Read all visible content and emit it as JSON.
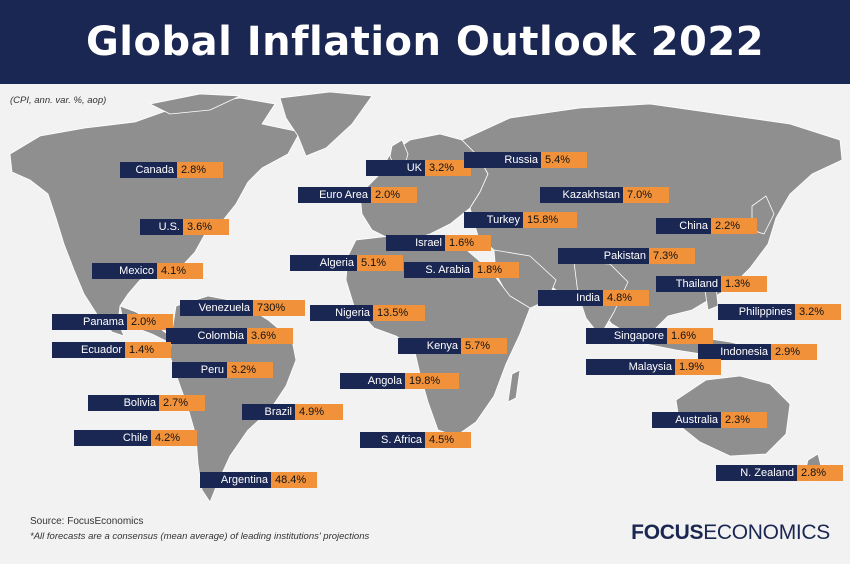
{
  "title": "Global Inflation Outlook 2022",
  "subtitle": "(CPI, ann. var. %, aop)",
  "source": "Source: FocusEconomics",
  "note": "*All forecasts are a consensus (mean average) of leading institutions' projections",
  "logo": {
    "bold": "FOCUS",
    "light": "ECONOMICS"
  },
  "colors": {
    "header": "#1b2753",
    "label_name_bg": "#1b2753",
    "label_value_bg": "#f1923b",
    "land": "#8f8f8f",
    "ocean": "#f2f2f2"
  },
  "countries": [
    {
      "name": "Canada",
      "value": "2.8%"
    },
    {
      "name": "U.S.",
      "value": "3.6%"
    },
    {
      "name": "Mexico",
      "value": "4.1%"
    },
    {
      "name": "Venezuela",
      "value": "730%"
    },
    {
      "name": "Panama",
      "value": "2.0%"
    },
    {
      "name": "Colombia",
      "value": "3.6%"
    },
    {
      "name": "Ecuador",
      "value": "1.4%"
    },
    {
      "name": "Peru",
      "value": "3.2%"
    },
    {
      "name": "Bolivia",
      "value": "2.7%"
    },
    {
      "name": "Brazil",
      "value": "4.9%"
    },
    {
      "name": "Chile",
      "value": "4.2%"
    },
    {
      "name": "Argentina",
      "value": "48.4%"
    },
    {
      "name": "UK",
      "value": "3.2%"
    },
    {
      "name": "Euro Area",
      "value": "2.0%"
    },
    {
      "name": "Russia",
      "value": "5.4%"
    },
    {
      "name": "Kazakhstan",
      "value": "7.0%"
    },
    {
      "name": "Turkey",
      "value": "15.8%"
    },
    {
      "name": "China",
      "value": "2.2%"
    },
    {
      "name": "Israel",
      "value": "1.6%"
    },
    {
      "name": "Algeria",
      "value": "5.1%"
    },
    {
      "name": "S. Arabia",
      "value": "1.8%"
    },
    {
      "name": "Pakistan",
      "value": "7.3%"
    },
    {
      "name": "Thailand",
      "value": "1.3%"
    },
    {
      "name": "India",
      "value": "4.8%"
    },
    {
      "name": "Philippines",
      "value": "3.2%"
    },
    {
      "name": "Nigeria",
      "value": "13.5%"
    },
    {
      "name": "Singapore",
      "value": "1.6%"
    },
    {
      "name": "Kenya",
      "value": "5.7%"
    },
    {
      "name": "Indonesia",
      "value": "2.9%"
    },
    {
      "name": "Malaysia",
      "value": "1.9%"
    },
    {
      "name": "Angola",
      "value": "19.8%"
    },
    {
      "name": "Australia",
      "value": "2.3%"
    },
    {
      "name": "S. Africa",
      "value": "4.5%"
    },
    {
      "name": "N. Zealand",
      "value": "2.8%"
    }
  ]
}
